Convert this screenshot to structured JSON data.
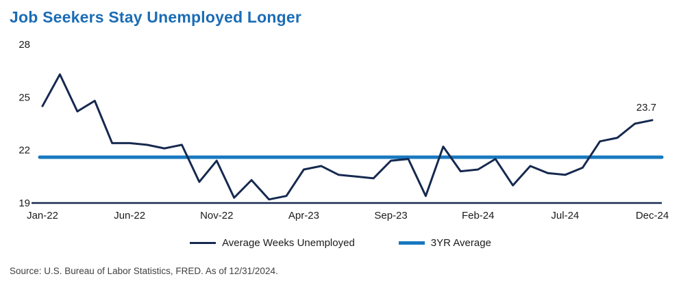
{
  "title": "Job Seekers Stay Unemployed Longer",
  "source": "Source: U.S. Bureau of Labor Statistics, FRED. As of 12/31/2024.",
  "annotation": {
    "label": "23.7"
  },
  "colors": {
    "title": "#1b6cb5",
    "series": "#16294f",
    "average": "#1878bf",
    "axis": "#16294f",
    "text": "#1a1a1a"
  },
  "legend": [
    {
      "label": "Average Weeks Unemployed",
      "color": "#16294f"
    },
    {
      "label": "3YR Average",
      "color": "#1878bf"
    }
  ],
  "chart_data": {
    "type": "line",
    "title": "Job Seekers Stay Unemployed Longer",
    "xlabel": "",
    "ylabel": "",
    "ylim": [
      19,
      28
    ],
    "y_ticks": [
      19,
      22,
      25,
      28
    ],
    "x_tick_labels": [
      "Jan-22",
      "Jun-22",
      "Nov-22",
      "Apr-23",
      "Sep-23",
      "Feb-24",
      "Jul-24",
      "Dec-24"
    ],
    "x": [
      "Jan-22",
      "Feb-22",
      "Mar-22",
      "Apr-22",
      "May-22",
      "Jun-22",
      "Jul-22",
      "Aug-22",
      "Sep-22",
      "Oct-22",
      "Nov-22",
      "Dec-22",
      "Jan-23",
      "Feb-23",
      "Mar-23",
      "Apr-23",
      "May-23",
      "Jun-23",
      "Jul-23",
      "Aug-23",
      "Sep-23",
      "Oct-23",
      "Nov-23",
      "Dec-23",
      "Jan-24",
      "Feb-24",
      "Mar-24",
      "Apr-24",
      "May-24",
      "Jun-24",
      "Jul-24",
      "Aug-24",
      "Sep-24",
      "Oct-24",
      "Nov-24",
      "Dec-24"
    ],
    "series": [
      {
        "name": "Average Weeks Unemployed",
        "values": [
          24.5,
          26.3,
          24.2,
          24.8,
          22.4,
          22.4,
          22.3,
          22.1,
          22.3,
          20.2,
          21.4,
          19.3,
          20.3,
          19.2,
          19.4,
          20.9,
          21.1,
          20.6,
          20.5,
          20.4,
          21.4,
          21.5,
          19.4,
          22.2,
          20.8,
          20.9,
          21.5,
          20.0,
          21.1,
          20.7,
          20.6,
          21.0,
          22.5,
          22.7,
          23.5,
          23.7
        ]
      },
      {
        "name": "3YR Average",
        "constant_value": 21.6
      }
    ],
    "grid": false,
    "legend_position": "bottom"
  }
}
